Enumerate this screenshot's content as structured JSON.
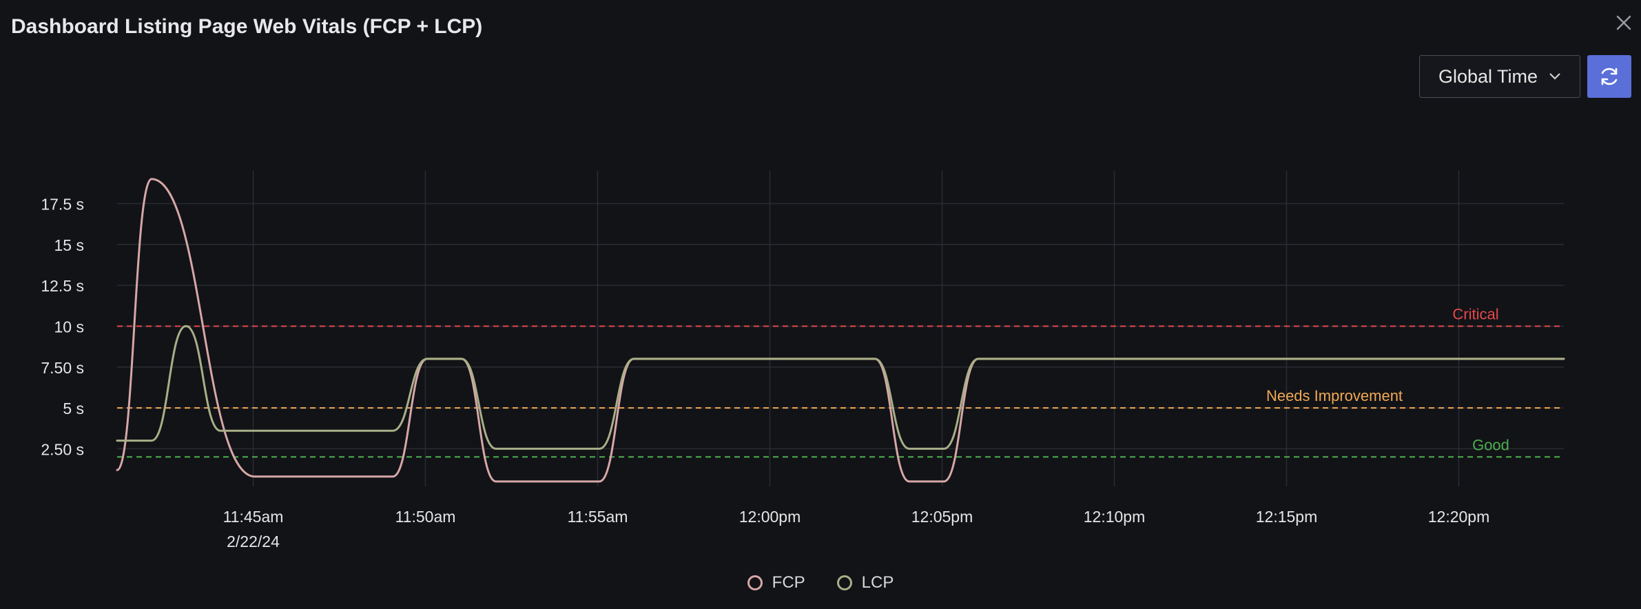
{
  "window": {
    "title": "Dashboard Listing Page Web Vitals (FCP + LCP)",
    "close_icon": "close-icon"
  },
  "toolbar": {
    "time_select_value": "Global Time",
    "refresh_icon": "refresh-icon",
    "accent_color": "#5b6fd9"
  },
  "chart_data": {
    "type": "line",
    "x_ticks": [
      {
        "label": "11:45am",
        "sub": "2/22/24",
        "minute": 45
      },
      {
        "label": "11:50am",
        "sub": "",
        "minute": 50
      },
      {
        "label": "11:55am",
        "sub": "",
        "minute": 55
      },
      {
        "label": "12:00pm",
        "sub": "",
        "minute": 60
      },
      {
        "label": "12:05pm",
        "sub": "",
        "minute": 65
      },
      {
        "label": "12:10pm",
        "sub": "",
        "minute": 70
      },
      {
        "label": "12:15pm",
        "sub": "",
        "minute": 75
      },
      {
        "label": "12:20pm",
        "sub": "",
        "minute": 80
      }
    ],
    "y_ticks": [
      {
        "label": "2.50 s",
        "value": 2.5
      },
      {
        "label": "5 s",
        "value": 5
      },
      {
        "label": "7.50 s",
        "value": 7.5
      },
      {
        "label": "10 s",
        "value": 10
      },
      {
        "label": "12.5 s",
        "value": 12.5
      },
      {
        "label": "15 s",
        "value": 15
      },
      {
        "label": "17.5 s",
        "value": 17.5
      }
    ],
    "xlim": [
      41.05,
      83.05
    ],
    "ylim": [
      0.2,
      19.5
    ],
    "thresholds": [
      {
        "name": "Critical",
        "value": 10,
        "color": "#e5484d"
      },
      {
        "name": "Needs Improvement",
        "value": 5,
        "color": "#f0a954"
      },
      {
        "name": "Good",
        "value": 2,
        "color": "#4caf50"
      }
    ],
    "series": [
      {
        "name": "FCP",
        "color": "#d6a7a7",
        "points": [
          [
            41.05,
            1.2
          ],
          [
            42.05,
            19.0
          ],
          [
            45.05,
            0.8
          ],
          [
            45.05,
            0.8
          ],
          [
            45.05,
            0.8
          ],
          [
            45.05,
            0.8
          ],
          [
            49.05,
            0.8
          ],
          [
            50.05,
            8.0
          ],
          [
            51.05,
            8.0
          ],
          [
            52.05,
            0.5
          ],
          [
            55.05,
            0.5
          ],
          [
            56.05,
            8.0
          ],
          [
            63.05,
            8.0
          ],
          [
            64.05,
            0.5
          ],
          [
            65.05,
            0.5
          ],
          [
            66.05,
            8.0
          ],
          [
            83.05,
            8.0
          ]
        ]
      },
      {
        "name": "LCP",
        "color": "#a9af87",
        "points": [
          [
            41.05,
            3.0
          ],
          [
            42.05,
            3.0
          ],
          [
            43.05,
            10.0
          ],
          [
            44.05,
            3.6
          ],
          [
            49.05,
            3.6
          ],
          [
            50.05,
            8.0
          ],
          [
            51.05,
            8.0
          ],
          [
            52.05,
            2.5
          ],
          [
            55.05,
            2.5
          ],
          [
            56.05,
            8.0
          ],
          [
            63.05,
            8.0
          ],
          [
            64.05,
            2.5
          ],
          [
            65.05,
            2.5
          ],
          [
            66.05,
            8.0
          ],
          [
            83.05,
            8.0
          ]
        ]
      }
    ]
  },
  "legend": {
    "items": [
      {
        "label": "FCP",
        "color": "#d6a7a7"
      },
      {
        "label": "LCP",
        "color": "#a9af87"
      }
    ]
  }
}
